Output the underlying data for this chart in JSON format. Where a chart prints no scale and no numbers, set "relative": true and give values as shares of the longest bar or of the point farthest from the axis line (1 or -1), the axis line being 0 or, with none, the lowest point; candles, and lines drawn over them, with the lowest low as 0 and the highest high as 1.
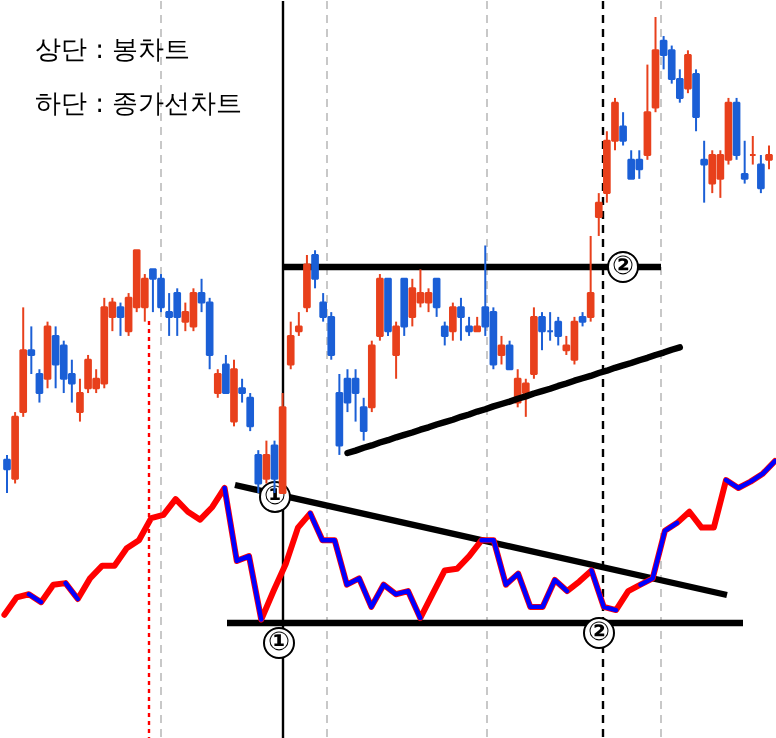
{
  "chart_data": [
    {
      "type": "candlestick",
      "title": "상단 : 봉차트",
      "relative": true,
      "categories": [
        null,
        null,
        null,
        null,
        null,
        null,
        null,
        null,
        null,
        null,
        null,
        null,
        null,
        null,
        null,
        null,
        null,
        null,
        null,
        null,
        null,
        null,
        null,
        null,
        null,
        null,
        null,
        null,
        null,
        null,
        null,
        null,
        null,
        null,
        null,
        null,
        null,
        null,
        null,
        null,
        null,
        null,
        null,
        null,
        null,
        null,
        null,
        null,
        null,
        null,
        null,
        null,
        null,
        null,
        null,
        null,
        null,
        null,
        null,
        null,
        null,
        null,
        null,
        null,
        null,
        null,
        null,
        null,
        null,
        null,
        null,
        null,
        null,
        null,
        null,
        null,
        null,
        null,
        null,
        null,
        null,
        null,
        null,
        null,
        null,
        null,
        null,
        null,
        null,
        null,
        null,
        null,
        null,
        null,
        null
      ],
      "ohlc": [
        [
          0.07,
          0.08,
          0,
          0.05
        ],
        [
          0.03,
          0.17,
          0.02,
          0.16
        ],
        [
          0.17,
          0.39,
          0.16,
          0.3
        ],
        [
          0.3,
          0.35,
          0.25,
          0.29
        ],
        [
          0.25,
          0.26,
          0.19,
          0.21
        ],
        [
          0.24,
          0.36,
          0.22,
          0.35
        ],
        [
          0.33,
          0.35,
          0.22,
          0.27
        ],
        [
          0.31,
          0.32,
          0.21,
          0.24
        ],
        [
          0.25,
          0.28,
          0.19,
          0.23
        ],
        [
          0.17,
          0.24,
          0.15,
          0.21
        ],
        [
          0.22,
          0.29,
          0.21,
          0.28
        ],
        [
          0.22,
          0.26,
          0.21,
          0.24
        ],
        [
          0.23,
          0.41,
          0.22,
          0.39
        ],
        [
          0.37,
          0.41,
          0.34,
          0.4
        ],
        [
          0.39,
          0.4,
          0.33,
          0.37
        ],
        [
          0.34,
          0.42,
          0.33,
          0.41
        ],
        [
          0.39,
          0.51,
          0.38,
          0.51
        ],
        [
          0.39,
          0.46,
          0.36,
          0.45
        ],
        [
          0.47,
          0.47,
          0.38,
          0.45
        ],
        [
          0.45,
          0.46,
          0.38,
          0.39
        ],
        [
          0.38,
          0.42,
          0.33,
          0.37
        ],
        [
          0.42,
          0.43,
          0.33,
          0.37
        ],
        [
          0.36,
          0.4,
          0.34,
          0.38
        ],
        [
          0.35,
          0.43,
          0.34,
          0.42
        ],
        [
          0.42,
          0.45,
          0.38,
          0.4
        ],
        [
          0.4,
          0.41,
          0.26,
          0.29
        ],
        [
          0.21,
          0.26,
          0.2,
          0.25
        ],
        [
          0.27,
          0.29,
          0.21,
          0.21
        ],
        [
          0.15,
          0.28,
          0.14,
          0.26
        ],
        [
          0.22,
          0.24,
          0.19,
          0.21
        ],
        [
          0.2,
          0.21,
          0.13,
          0.14
        ],
        [
          0.08,
          0.09,
          0,
          0.02
        ],
        [
          0.03,
          0.11,
          0.02,
          0.08
        ],
        [
          0.1,
          0.11,
          0,
          0.03
        ],
        [
          0,
          0.21,
          0,
          0.18
        ],
        [
          0.27,
          0.36,
          0.26,
          0.33
        ],
        [
          0.34,
          0.38,
          0.33,
          0.35
        ],
        [
          0.39,
          0.5,
          0.38,
          0.48
        ],
        [
          0.5,
          0.51,
          0.43,
          0.45
        ],
        [
          0.4,
          0.42,
          0.36,
          0.37
        ],
        [
          0.37,
          0.38,
          0.28,
          0.29
        ],
        [
          0.21,
          0.25,
          0.08,
          0.1
        ],
        [
          0.24,
          0.26,
          0.17,
          0.19
        ],
        [
          0.24,
          0.26,
          0.15,
          0.21
        ],
        [
          0.18,
          0.2,
          0.11,
          0.13
        ],
        [
          0.18,
          0.32,
          0.17,
          0.31
        ],
        [
          0.33,
          0.46,
          0.32,
          0.45
        ],
        [
          0.45,
          0.45,
          0.33,
          0.34
        ],
        [
          0.29,
          0.36,
          0.24,
          0.35
        ],
        [
          0.45,
          0.45,
          0.33,
          0.35
        ],
        [
          0.37,
          0.45,
          0.35,
          0.43
        ],
        [
          0.4,
          0.47,
          0.39,
          0.42
        ],
        [
          0.4,
          0.43,
          0.38,
          0.42
        ],
        [
          0.45,
          0.45,
          0.37,
          0.39
        ],
        [
          0.35,
          0.36,
          0.31,
          0.33
        ],
        [
          0.34,
          0.4,
          0.32,
          0.39
        ],
        [
          0.39,
          0.41,
          0.32,
          0.37
        ],
        [
          0.35,
          0.37,
          0.33,
          0.34
        ],
        [
          0.34,
          0.37,
          0.34,
          0.35
        ],
        [
          0.39,
          0.52,
          0.33,
          0.35
        ],
        [
          0.38,
          0.39,
          0.26,
          0.27
        ],
        [
          0.29,
          0.33,
          0.27,
          0.31
        ],
        [
          0.31,
          0.32,
          0.26,
          0.26
        ],
        [
          0.19,
          0.26,
          0.18,
          0.24
        ],
        [
          0.21,
          0.24,
          0.16,
          0.23
        ],
        [
          0.25,
          0.39,
          0.24,
          0.37
        ],
        [
          0.37,
          0.38,
          0.3,
          0.34
        ],
        [
          0.34,
          0.38,
          0.32,
          0.34
        ],
        [
          0.36,
          0.37,
          0.31,
          0.33
        ],
        [
          0.3,
          0.33,
          0.29,
          0.31
        ],
        [
          0.28,
          0.37,
          0.27,
          0.36
        ],
        [
          0.37,
          0.38,
          0.35,
          0.36
        ],
        [
          0.37,
          0.54,
          0.36,
          0.42
        ],
        [
          0.58,
          0.63,
          0.54,
          0.61
        ],
        [
          0.63,
          0.76,
          0.61,
          0.74
        ],
        [
          0.74,
          0.83,
          0.72,
          0.82
        ],
        [
          0.77,
          0.8,
          0.73,
          0.74
        ],
        [
          0.7,
          0.72,
          0.66,
          0.66
        ],
        [
          0.7,
          0.72,
          0.66,
          0.68
        ],
        [
          0.71,
          0.9,
          0.7,
          0.8
        ],
        [
          0.81,
          1.0,
          0.8,
          0.93
        ],
        [
          0.95,
          0.96,
          0.89,
          0.92
        ],
        [
          0.93,
          0.94,
          0.86,
          0.87
        ],
        [
          0.87,
          0.89,
          0.82,
          0.83
        ],
        [
          0.85,
          0.93,
          0.84,
          0.92
        ],
        [
          0.88,
          0.89,
          0.76,
          0.79
        ],
        [
          0.7,
          0.74,
          0.61,
          0.69
        ],
        [
          0.65,
          0.72,
          0.63,
          0.71
        ],
        [
          0.66,
          0.72,
          0.62,
          0.71
        ],
        [
          0.7,
          0.83,
          0.69,
          0.82
        ],
        [
          0.82,
          0.83,
          0.7,
          0.71
        ],
        [
          0.67,
          0.74,
          0.65,
          0.66
        ],
        [
          0.71,
          0.75,
          0.69,
          0.71
        ],
        [
          0.69,
          0.71,
          0.63,
          0.64
        ],
        [
          0.7,
          0.73,
          0.68,
          0.71
        ]
      ],
      "colors": [
        "#1b5fd6",
        "#e8401c",
        "#e8401c",
        "#1b5fd6",
        "#1b5fd6",
        "#e8401c",
        "#1b5fd6",
        "#1b5fd6",
        "#1b5fd6",
        "#e8401c",
        "#e8401c",
        "#e8401c",
        "#e8401c",
        "#e8401c",
        "#1b5fd6",
        "#e8401c",
        "#e8401c",
        "#e8401c",
        "#1b5fd6",
        "#1b5fd6",
        "#1b5fd6",
        "#1b5fd6",
        "#e8401c",
        "#e8401c",
        "#1b5fd6",
        "#1b5fd6",
        "#e8401c",
        "#1b5fd6",
        "#e8401c",
        "#1b5fd6",
        "#1b5fd6",
        "#1b5fd6",
        "#e8401c",
        "#1b5fd6",
        "#e8401c",
        "#e8401c",
        "#e8401c",
        "#e8401c",
        "#1b5fd6",
        "#1b5fd6",
        "#1b5fd6",
        "#1b5fd6",
        "#1b5fd6",
        "#1b5fd6",
        "#1b5fd6",
        "#e8401c",
        "#e8401c",
        "#1b5fd6",
        "#e8401c",
        "#1b5fd6",
        "#e8401c",
        "#e8401c",
        "#e8401c",
        "#1b5fd6",
        "#1b5fd6",
        "#e8401c",
        "#1b5fd6",
        "#1b5fd6",
        "#e8401c",
        "#1b5fd6",
        "#1b5fd6",
        "#e8401c",
        "#1b5fd6",
        "#e8401c",
        "#e8401c",
        "#e8401c",
        "#1b5fd6",
        "#1b5fd6",
        "#1b5fd6",
        "#e8401c",
        "#e8401c",
        "#1b5fd6",
        "#e8401c",
        "#e8401c",
        "#e8401c",
        "#e8401c",
        "#1b5fd6",
        "#1b5fd6",
        "#1b5fd6",
        "#e8401c",
        "#e8401c",
        "#1b5fd6",
        "#1b5fd6",
        "#1b5fd6",
        "#e8401c",
        "#1b5fd6",
        "#1b5fd6",
        "#e8401c",
        "#e8401c",
        "#e8401c",
        "#1b5fd6",
        "#1b5fd6",
        "#e8401c",
        "#1b5fd6",
        "#e8401c"
      ],
      "series": [
        {
          "type": "line",
          "color": "#000000",
          "values": [
            null,
            null,
            null,
            null,
            null,
            null,
            null,
            null,
            null,
            null,
            null,
            null,
            null,
            null,
            null,
            null,
            null,
            null,
            null,
            null,
            null,
            null,
            null,
            null,
            null,
            null,
            null,
            null,
            null,
            null,
            null,
            null,
            null,
            null,
            null,
            null,
            null,
            null,
            null,
            null,
            null,
            null,
            0.084,
            0.089,
            0.095,
            0.1,
            0.106,
            0.111,
            0.117,
            0.122,
            0.127,
            0.133,
            0.138,
            0.144,
            0.149,
            0.154,
            0.16,
            0.165,
            0.171,
            0.176,
            0.182,
            0.187,
            0.192,
            0.198,
            0.203,
            0.209,
            0.214,
            0.219,
            0.225,
            0.23,
            0.236,
            0.241,
            0.246,
            0.252,
            0.257,
            0.263,
            0.268,
            0.273,
            0.279,
            0.284,
            0.29,
            0.295,
            0.301,
            0.306,
            null,
            null,
            null,
            null,
            null,
            null,
            null,
            null,
            null,
            null,
            null
          ]
        }
      ],
      "annotations": [
        "②"
      ]
    },
    {
      "type": "line",
      "title": "하단 : 종가선차트",
      "relative": true,
      "categories": [
        null,
        null,
        null,
        null,
        null,
        null,
        null,
        null,
        null,
        null,
        null,
        null,
        null,
        null,
        null,
        null,
        null,
        null,
        null,
        null,
        null,
        null,
        null,
        null,
        null,
        null,
        null,
        null,
        null,
        null,
        null,
        null,
        null,
        null,
        null,
        null,
        null,
        null,
        null,
        null,
        null,
        null,
        null,
        null,
        null,
        null,
        null,
        null,
        null,
        null,
        null,
        null,
        null,
        null,
        null,
        null,
        null,
        null,
        null,
        null,
        null,
        null,
        null,
        null
      ],
      "series": [
        {
          "color": "#ff0000",
          "values": [
            0.03,
            0.14,
            0.16,
            0.11,
            0.22,
            0.23,
            0.13,
            0.26,
            0.34,
            0.34,
            0.45,
            0.5,
            0.64,
            0.66,
            0.76,
            0.68,
            0.63,
            0.71,
            0.83,
            0.37,
            0.4,
            0,
            0.18,
            0.35,
            0.58,
            0.67,
            0.5,
            0.5,
            0.22,
            0.26,
            0.08,
            0.22,
            0.16,
            0.18,
            0.01,
            0.16,
            0.31,
            0.32,
            0.4,
            0.5,
            0.5,
            0.22,
            0.29,
            0.08,
            0.08,
            0.25,
            0.18,
            0.24,
            0.31,
            0.08,
            0.06,
            0.18,
            0.22,
            0.26,
            0.56,
            0.61,
            0.68,
            0.58,
            0.58,
            0.88,
            0.83,
            0.87,
            0.92,
            1.0
          ]
        },
        {
          "color": "#0000ff",
          "values": [
            null,
            null,
            0.16,
            0.11,
            null,
            0.23,
            0.13,
            null,
            null,
            null,
            null,
            null,
            null,
            null,
            null,
            null,
            null,
            null,
            0.83,
            0.37,
            0.4,
            0,
            null,
            null,
            null,
            0.67,
            0.5,
            0.5,
            0.22,
            0.26,
            0.08,
            0.22,
            0.16,
            0.18,
            0.01,
            null,
            null,
            null,
            null,
            0.5,
            0.5,
            0.22,
            0.29,
            0.08,
            0.08,
            0.25,
            0.18,
            null,
            0.31,
            0.08,
            0.06,
            null,
            0.22,
            0.26,
            0.56,
            0.61,
            null,
            null,
            null,
            0.88,
            0.83,
            0.87,
            0.92,
            1.0
          ]
        }
      ],
      "annotations": [
        "①",
        "①",
        "②"
      ]
    }
  ]
}
